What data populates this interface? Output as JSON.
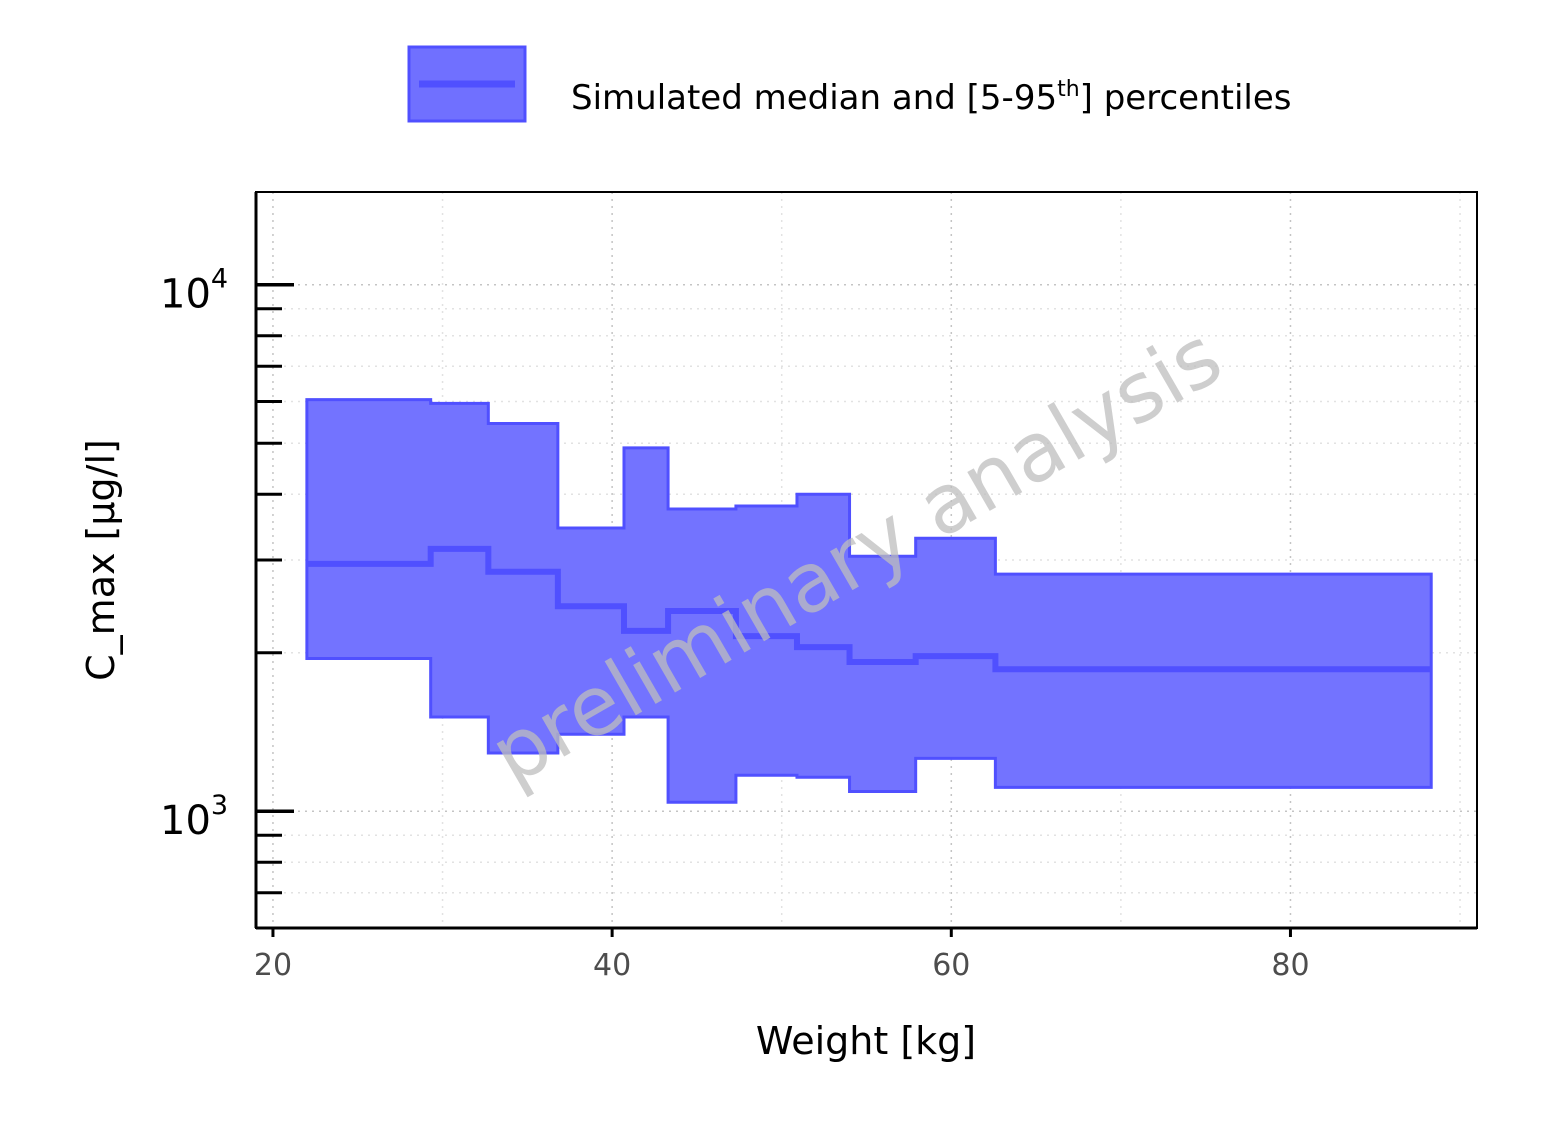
{
  "chart_data": {
    "type": "area",
    "title": "",
    "xlabel": "Weight [kg]",
    "ylabel": "C_max [µg/l]",
    "xlim": [
      19,
      91
    ],
    "ylim": [
      600,
      15000
    ],
    "yscale": "log",
    "x_ticks": [
      20,
      40,
      60,
      80
    ],
    "x_tick_labels": [
      "20",
      "40",
      "60",
      "80"
    ],
    "y_major_ticks": [
      {
        "value": 1000,
        "base": "10",
        "exponent": "3"
      },
      {
        "value": 10000,
        "base": "10",
        "exponent": "4"
      }
    ],
    "y_minor_ticks": [
      700,
      800,
      900,
      2000,
      3000,
      4000,
      5000,
      6000,
      7000,
      8000,
      9000
    ],
    "grid": true,
    "legend": {
      "position": "top-center",
      "label_main": "Simulated median and [5-95",
      "label_sup": "th",
      "label_end": "] percentiles"
    },
    "watermark": "preliminary analysis",
    "color": "#5050FF",
    "bins": [
      {
        "x0": 22.0,
        "x1": 29.3,
        "median": 2950,
        "p5": 1950,
        "p95": 6050
      },
      {
        "x0": 29.3,
        "x1": 32.7,
        "median": 3150,
        "p5": 1510,
        "p95": 5950
      },
      {
        "x0": 32.7,
        "x1": 36.8,
        "median": 2850,
        "p5": 1290,
        "p95": 5450
      },
      {
        "x0": 36.8,
        "x1": 40.7,
        "median": 2450,
        "p5": 1400,
        "p95": 3450
      },
      {
        "x0": 40.7,
        "x1": 43.3,
        "median": 2200,
        "p5": 1510,
        "p95": 4900
      },
      {
        "x0": 43.3,
        "x1": 47.3,
        "median": 2400,
        "p5": 1040,
        "p95": 3750
      },
      {
        "x0": 47.3,
        "x1": 50.9,
        "median": 2150,
        "p5": 1170,
        "p95": 3800
      },
      {
        "x0": 50.9,
        "x1": 54.0,
        "median": 2050,
        "p5": 1160,
        "p95": 4000
      },
      {
        "x0": 54.0,
        "x1": 57.9,
        "median": 1920,
        "p5": 1090,
        "p95": 3050
      },
      {
        "x0": 57.9,
        "x1": 62.6,
        "median": 1970,
        "p5": 1260,
        "p95": 3300
      },
      {
        "x0": 62.6,
        "x1": 88.3,
        "median": 1860,
        "p5": 1110,
        "p95": 2820
      }
    ]
  }
}
